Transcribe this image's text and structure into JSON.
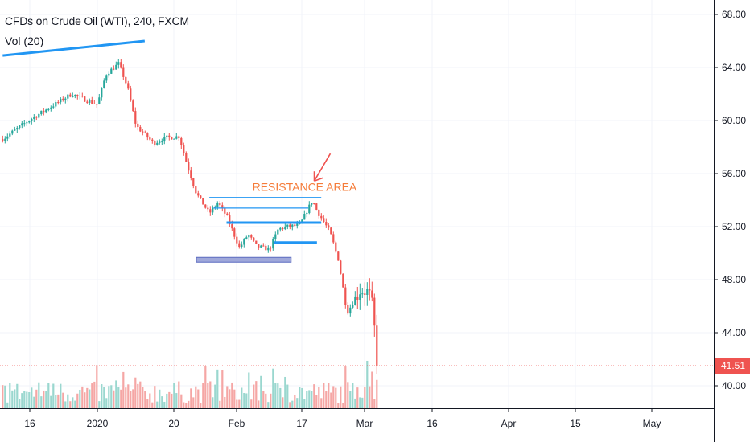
{
  "legend": {
    "symbol_title": "CFDs on Crude Oil (WTI), 240, FXCM",
    "volume_label": "Vol (20)"
  },
  "colors": {
    "up": "#26a69a",
    "down": "#ef5350",
    "vol_up": "#9ad7cf",
    "vol_down": "#f5a6a5",
    "grid": "#f0f3fa",
    "axis": "#131722",
    "last_price": "#ef5350",
    "trendline": "#2196f3",
    "support_zone": "#5c6bc0",
    "annotation": "#f57c3a"
  },
  "chart_data": {
    "type": "candlestick",
    "symbol": "CFDs on Crude Oil (WTI)",
    "interval": "240",
    "source": "FXCM",
    "x_ticks": [
      "16",
      "2020",
      "20",
      "Feb",
      "17",
      "Mar",
      "16",
      "Apr",
      "15",
      "May"
    ],
    "y_ticks": [
      "68.00",
      "64.00",
      "60.00",
      "56.00",
      "52.00",
      "48.00",
      "44.00",
      "40.00"
    ],
    "ylim": [
      38.5,
      69.0
    ],
    "last_price": 41.51,
    "last_price_label": "41.51",
    "series": [
      {
        "name": "close",
        "x": [
          "2019-12-10",
          "2019-12-16",
          "2019-12-20",
          "2019-12-26",
          "2020-01-01",
          "2020-01-03",
          "2020-01-06",
          "2020-01-08",
          "2020-01-10",
          "2020-01-14",
          "2020-01-17",
          "2020-01-20",
          "2020-01-22",
          "2020-01-24",
          "2020-01-27",
          "2020-01-29",
          "2020-01-31",
          "2020-02-03",
          "2020-02-05",
          "2020-02-07",
          "2020-02-10",
          "2020-02-12",
          "2020-02-14",
          "2020-02-17",
          "2020-02-19",
          "2020-02-20",
          "2020-02-21",
          "2020-02-24",
          "2020-02-26",
          "2020-02-28",
          "2020-03-02",
          "2020-03-04",
          "2020-03-05",
          "2020-03-06"
        ],
        "values": [
          58.6,
          60.0,
          60.8,
          62.0,
          61.2,
          63.5,
          64.3,
          62.5,
          59.6,
          58.3,
          58.7,
          58.8,
          56.5,
          54.5,
          53.0,
          53.8,
          52.8,
          50.4,
          51.4,
          50.5,
          50.3,
          51.8,
          52.0,
          52.1,
          53.4,
          54.0,
          53.2,
          51.6,
          49.5,
          45.5,
          47.2,
          47.1,
          45.8,
          41.51
        ]
      }
    ],
    "volume_series": {
      "name": "Vol (20)",
      "description_free": true
    },
    "annotations": [
      {
        "type": "text",
        "text": "RESISTANCE AREA",
        "x": "2020-02-06",
        "y": 55.0
      },
      {
        "type": "arrow",
        "x": "2020-02-20",
        "y": 55.2
      },
      {
        "type": "hline",
        "y": 54.2,
        "x_start": "2020-01-27",
        "x_end": "2020-02-22"
      },
      {
        "type": "hline",
        "y": 53.4,
        "x_start": "2020-01-28",
        "x_end": "2020-02-19"
      },
      {
        "type": "hline",
        "y": 52.3,
        "x_start": "2020-01-31",
        "x_end": "2020-02-22"
      },
      {
        "type": "hline",
        "y": 50.8,
        "x_start": "2020-02-11",
        "x_end": "2020-02-21"
      },
      {
        "type": "zone",
        "y": 49.5,
        "x_start": "2020-01-24",
        "x_end": "2020-02-15"
      },
      {
        "type": "trendline",
        "x_start": "2019-12-10",
        "y_start": 64.9,
        "x_end": "2020-01-12",
        "y_end": 66.0
      }
    ]
  }
}
